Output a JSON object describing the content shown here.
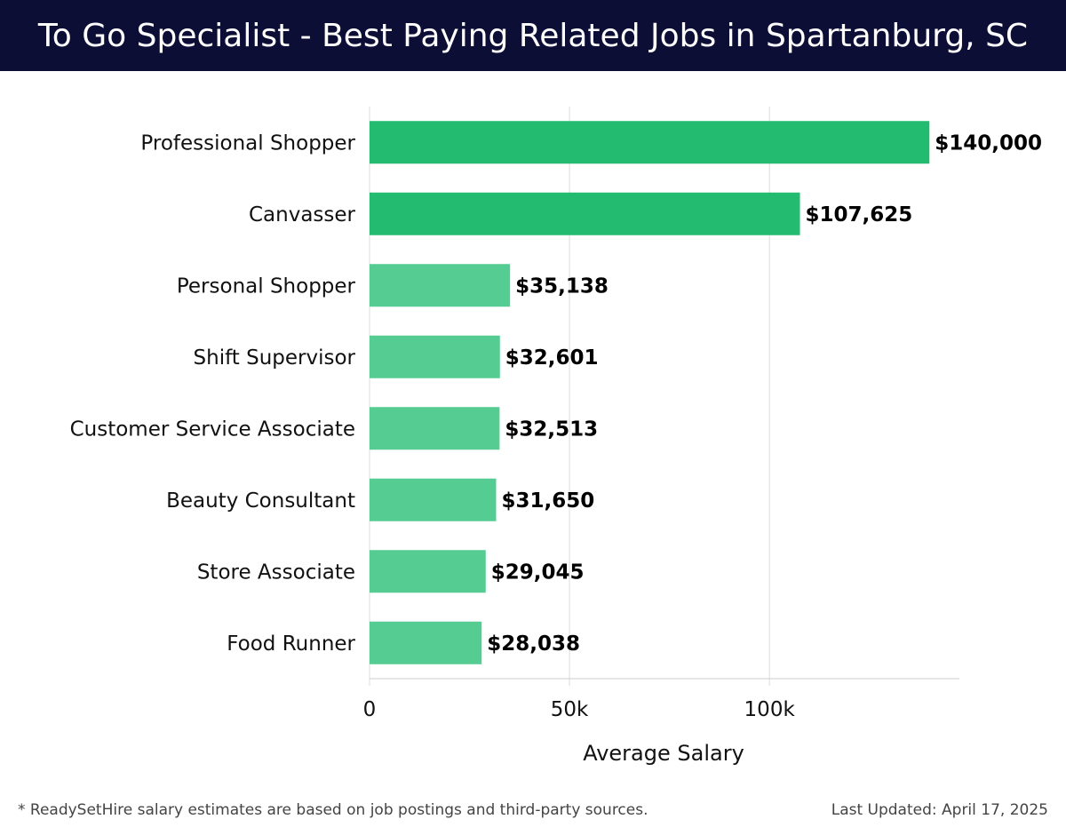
{
  "header": {
    "title": "To Go Specialist - Best Paying Related Jobs in Spartanburg, SC"
  },
  "chart_data": {
    "type": "bar",
    "orientation": "horizontal",
    "categories": [
      "Professional Shopper",
      "Canvasser",
      "Personal Shopper",
      "Shift Supervisor",
      "Customer Service Associate",
      "Beauty Consultant",
      "Store Associate",
      "Food Runner"
    ],
    "values": [
      140000,
      107625,
      35138,
      32601,
      32513,
      31650,
      29045,
      28038
    ],
    "value_labels": [
      "$140,000",
      "$107,625",
      "$35,138",
      "$32,601",
      "$32,513",
      "$31,650",
      "$29,045",
      "$28,038"
    ],
    "xlabel": "Average Salary",
    "ylabel": "",
    "xlim": [
      0,
      147500
    ],
    "xticks": [
      0,
      50000,
      100000
    ],
    "xtick_labels": [
      "0",
      "50k",
      "100k"
    ],
    "grid": true,
    "colors": {
      "top_bars": "#22bb70",
      "other_bars": "#55cc92"
    }
  },
  "footer": {
    "note": "* ReadySetHire salary estimates are based on job postings and third-party sources.",
    "updated": "Last Updated: April 17, 2025"
  }
}
